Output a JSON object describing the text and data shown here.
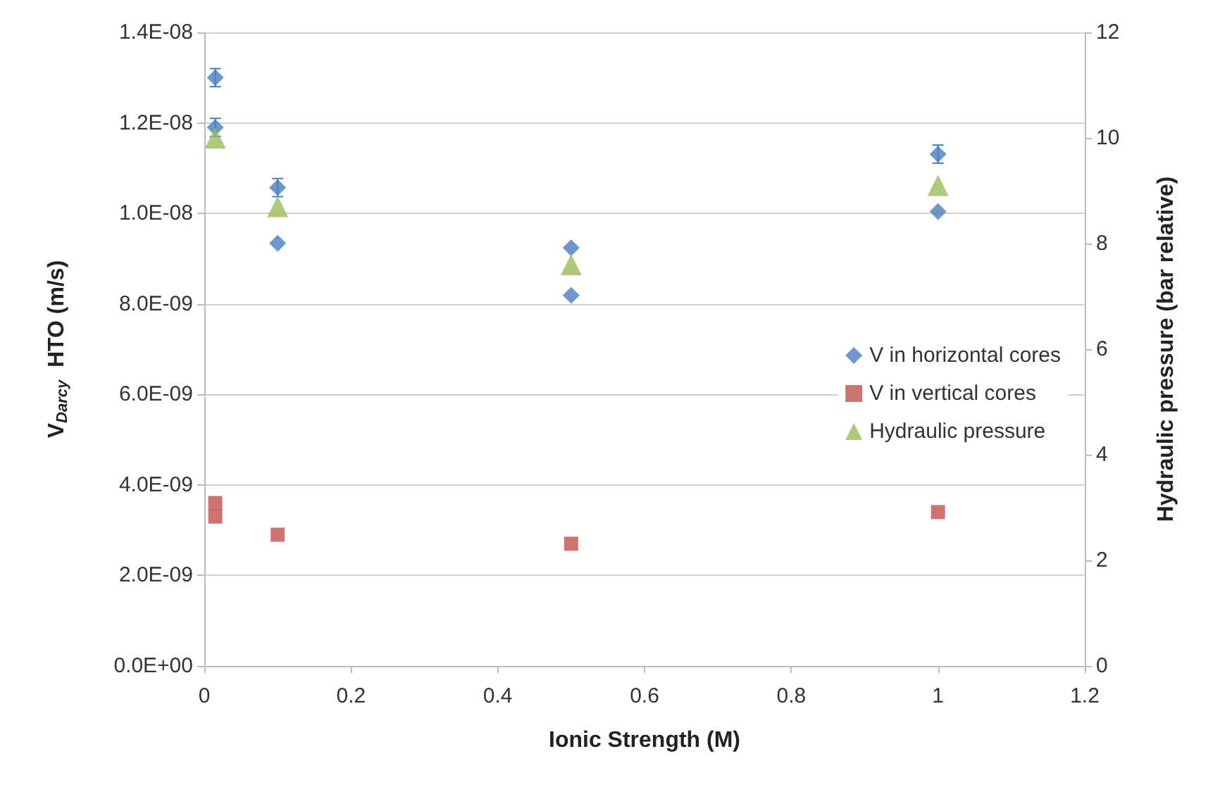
{
  "chart_data": {
    "type": "scatter",
    "xlabel": "Ionic Strength (M)",
    "ylabel": "V$_{Darcy}$  HTO (m/s)",
    "y2label": "Hydraulic pressure (bar relative)",
    "series": [
      {
        "name": "V in horizontal cores",
        "color": "#4a7ebb",
        "marker": "diamond",
        "x": [
          0.015,
          0.015,
          0.1,
          0.1,
          0.5,
          0.5,
          1,
          1
        ],
        "values": [
          1.3e-08,
          1.19e-08,
          1.057e-08,
          9.34e-09,
          9.24e-09,
          8.19e-09,
          1.131e-08,
          1.004e-08
        ],
        "errors": [
          2e-10,
          2e-10,
          2e-10,
          null,
          null,
          null,
          2e-10,
          null
        ]
      },
      {
        "name": "V in vertical cores",
        "color": "#c0504d",
        "marker": "square",
        "x": [
          0.015,
          0.015,
          0.1,
          0.5,
          1
        ],
        "values": [
          3.6e-09,
          3.3e-09,
          2.9e-09,
          2.7e-09,
          3.4e-09
        ]
      },
      {
        "name": "Hydraulic pressure",
        "color": "#9bbb59",
        "marker": "triangle",
        "axis": "y2",
        "x": [
          0.015,
          0.1,
          0.5,
          1
        ],
        "values": [
          10,
          8.7,
          7.6,
          9.1
        ]
      }
    ],
    "xlim": [
      0,
      1.2
    ],
    "xticks": [
      0,
      0.2,
      0.4,
      0.6,
      0.8,
      1,
      1.2
    ],
    "ylim": [
      0,
      1.4e-08
    ],
    "yticks": [
      {
        "value": 0,
        "label": "0.0E+00"
      },
      {
        "value": 2e-09,
        "label": "2.0E-09"
      },
      {
        "value": 4e-09,
        "label": "4.0E-09"
      },
      {
        "value": 6e-09,
        "label": "6.0E-09"
      },
      {
        "value": 8e-09,
        "label": "8.0E-09"
      },
      {
        "value": 1e-08,
        "label": "1.0E-08"
      },
      {
        "value": 1.2e-08,
        "label": "1.2E-08"
      },
      {
        "value": 1.4e-08,
        "label": "1.4E-08"
      }
    ],
    "y2lim": [
      0,
      12
    ],
    "y2ticks": [
      0,
      2,
      4,
      6,
      8,
      10,
      12
    ],
    "grid": "y",
    "legend": "right"
  }
}
